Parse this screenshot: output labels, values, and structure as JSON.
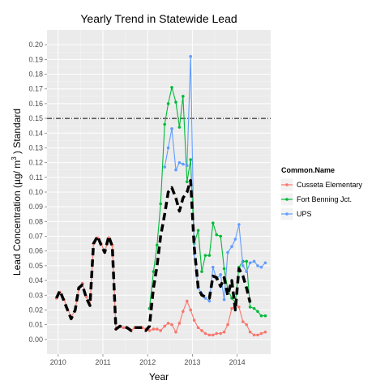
{
  "chart_data": {
    "type": "line",
    "title": "Yearly Trend in Statewide Lead",
    "xlabel": "Year",
    "ylabel_prefix": "Lead Concentration (µg/ m",
    "ylabel_sup": "3",
    "ylabel_suffix": " ) Standard",
    "xlim": [
      2009.75,
      2014.75
    ],
    "ylim": [
      -0.01,
      0.21
    ],
    "x_ticks": [
      2010,
      2011,
      2012,
      2013,
      2014
    ],
    "x_tick_labels": [
      "2010",
      "2011",
      "2012",
      "2013",
      "2014"
    ],
    "y_ticks": [
      0.0,
      0.01,
      0.02,
      0.03,
      0.04,
      0.05,
      0.06,
      0.07,
      0.08,
      0.09,
      0.1,
      0.11,
      0.12,
      0.13,
      0.14,
      0.15,
      0.16,
      0.17,
      0.18,
      0.19,
      0.2
    ],
    "y_tick_labels": [
      "0.00",
      "0.01",
      "0.02",
      "0.03",
      "0.04",
      "0.05",
      "0.06",
      "0.07",
      "0.08",
      "0.09",
      "0.10",
      "0.11",
      "0.12",
      "0.13",
      "0.14",
      "0.15",
      "0.16",
      "0.17",
      "0.18",
      "0.19",
      "0.20"
    ],
    "grid": true,
    "background": "#ebebeb",
    "reference_line": {
      "y": 0.15,
      "style": "dashdot",
      "color": "#000000"
    },
    "legend": {
      "title": "Common.Name",
      "position": "right"
    },
    "series": [
      {
        "name": "Cusseta Elementary",
        "color": "#F8766D",
        "x": [
          2009.96,
          2010.04,
          2010.13,
          2010.29,
          2010.38,
          2010.46,
          2010.54,
          2010.63,
          2010.71,
          2010.79,
          2010.88,
          2010.96,
          2011.04,
          2011.13,
          2011.21,
          2011.29,
          2011.38,
          2011.46,
          2011.54,
          2011.63,
          2011.71,
          2011.79,
          2011.88,
          2011.96,
          2012.04,
          2012.13,
          2012.21,
          2012.29,
          2012.38,
          2012.46,
          2012.54,
          2012.63,
          2012.71,
          2012.79,
          2012.88,
          2012.96,
          2013.04,
          2013.13,
          2013.21,
          2013.29,
          2013.38,
          2013.46,
          2013.54,
          2013.63,
          2013.71,
          2013.79,
          2013.88,
          2013.96,
          2014.04,
          2014.13,
          2014.21,
          2014.29,
          2014.38,
          2014.46,
          2014.54,
          2014.63
        ],
        "values": [
          0.028,
          0.032,
          0.027,
          0.015,
          0.02,
          0.035,
          0.038,
          0.029,
          0.023,
          0.065,
          0.069,
          0.065,
          0.059,
          0.069,
          0.064,
          0.007,
          0.009,
          0.008,
          0.008,
          0.006,
          0.008,
          0.008,
          0.008,
          0.007,
          0.006,
          0.007,
          0.007,
          0.006,
          0.009,
          0.011,
          0.01,
          0.005,
          0.011,
          0.019,
          0.026,
          0.02,
          0.013,
          0.008,
          0.006,
          0.004,
          0.003,
          0.003,
          0.004,
          0.004,
          0.005,
          0.01,
          0.021,
          0.023,
          0.022,
          0.012,
          0.01,
          0.005,
          0.003,
          0.003,
          0.004,
          0.005
        ]
      },
      {
        "name": "Fort Benning Jct.",
        "color": "#00BA38",
        "x": [
          2012.04,
          2012.13,
          2012.21,
          2012.29,
          2012.38,
          2012.46,
          2012.54,
          2012.63,
          2012.71,
          2012.79,
          2012.88,
          2012.96,
          2013.04,
          2013.13,
          2013.21,
          2013.29,
          2013.38,
          2013.46,
          2013.54,
          2013.63,
          2013.71,
          2013.79,
          2013.88,
          2013.96,
          2014.04,
          2014.13,
          2014.21,
          2014.29,
          2014.38,
          2014.46,
          2014.54,
          2014.63
        ],
        "values": [
          0.021,
          0.046,
          0.064,
          0.092,
          0.146,
          0.16,
          0.171,
          0.161,
          0.144,
          0.165,
          0.107,
          0.122,
          0.065,
          0.074,
          0.046,
          0.057,
          0.057,
          0.079,
          0.071,
          0.07,
          0.048,
          0.034,
          0.028,
          0.025,
          0.049,
          0.053,
          0.053,
          0.022,
          0.021,
          0.019,
          0.016,
          0.016
        ]
      },
      {
        "name": "UPS",
        "color": "#619CFF",
        "x": [
          2012.38,
          2012.46,
          2012.54,
          2012.63,
          2012.71,
          2012.79,
          2012.88,
          2012.96,
          2013.04,
          2013.13,
          2013.21,
          2013.29,
          2013.38,
          2013.46,
          2013.54,
          2013.63,
          2013.71,
          2013.79,
          2013.88,
          2013.96,
          2014.04,
          2014.13,
          2014.21,
          2014.29,
          2014.38,
          2014.46,
          2014.54,
          2014.63
        ],
        "values": [
          0.117,
          0.13,
          0.143,
          0.115,
          0.12,
          0.119,
          0.118,
          0.192,
          0.058,
          0.035,
          0.031,
          0.028,
          0.026,
          0.049,
          0.041,
          0.044,
          0.027,
          0.059,
          0.063,
          0.068,
          0.078,
          0.05,
          0.046,
          0.052,
          0.053,
          0.05,
          0.049,
          0.052
        ]
      }
    ],
    "trend": {
      "color": "#000000",
      "style": "thick-dashed",
      "x": [
        2009.96,
        2010.04,
        2010.13,
        2010.21,
        2010.29,
        2010.38,
        2010.46,
        2010.54,
        2010.63,
        2010.71,
        2010.79,
        2010.88,
        2010.96,
        2011.04,
        2011.13,
        2011.21,
        2011.29,
        2011.38,
        2011.46,
        2011.54,
        2011.63,
        2011.71,
        2011.79,
        2011.88,
        2011.96,
        2012.04,
        2012.13,
        2012.21,
        2012.29,
        2012.38,
        2012.46,
        2012.54,
        2012.63,
        2012.71,
        2012.79,
        2012.88,
        2012.96,
        2013.04,
        2013.13,
        2013.21,
        2013.29,
        2013.38,
        2013.46,
        2013.54,
        2013.63,
        2013.71,
        2013.79,
        2013.88,
        2013.96,
        2014.04,
        2014.13,
        2014.21,
        2014.29
      ],
      "values": [
        0.028,
        0.033,
        0.026,
        0.02,
        0.014,
        0.02,
        0.035,
        0.037,
        0.028,
        0.023,
        0.065,
        0.07,
        0.064,
        0.059,
        0.07,
        0.063,
        0.007,
        0.009,
        0.008,
        0.008,
        0.006,
        0.008,
        0.008,
        0.008,
        0.006,
        0.009,
        0.035,
        0.05,
        0.07,
        0.085,
        0.1,
        0.103,
        0.096,
        0.087,
        0.096,
        0.1,
        0.108,
        0.063,
        0.035,
        0.03,
        0.029,
        0.028,
        0.043,
        0.042,
        0.036,
        0.042,
        0.03,
        0.04,
        0.02,
        0.048,
        0.043,
        0.035,
        0.025
      ]
    }
  }
}
